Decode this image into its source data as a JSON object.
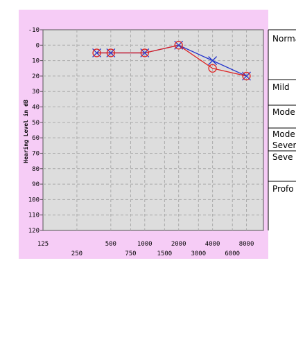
{
  "chart_data": {
    "type": "line",
    "ylabel": "Hearing Level in dB",
    "xlabel": "",
    "title": "",
    "y_inverted": true,
    "ylim": [
      -10,
      120
    ],
    "y_ticks": [
      "-10",
      "0",
      "10",
      "20",
      "30",
      "40",
      "50",
      "60",
      "70",
      "80",
      "90",
      "100",
      "110",
      "120"
    ],
    "x_ticks_row1": [
      "125",
      "500",
      "1000",
      "2000",
      "4000",
      "8000"
    ],
    "x_ticks_row2": [
      "250",
      "750",
      "1500",
      "3000",
      "6000"
    ],
    "x_scale": "log",
    "grid": true,
    "series": [
      {
        "marker": "cross",
        "color": "#2233cc",
        "points": [
          [
            375,
            5
          ],
          [
            500,
            5
          ],
          [
            1000,
            5
          ],
          [
            2000,
            0
          ],
          [
            4000,
            10
          ],
          [
            8000,
            20
          ]
        ]
      },
      {
        "marker": "circle",
        "color": "#dd2222",
        "points": [
          [
            375,
            5
          ],
          [
            500,
            5
          ],
          [
            1000,
            5
          ],
          [
            2000,
            0
          ],
          [
            4000,
            15
          ],
          [
            8000,
            20
          ]
        ]
      }
    ],
    "severity_labels": [
      "Norma",
      "Mild",
      "Mode",
      "Mode",
      "Sever",
      "Seve",
      "Profo"
    ]
  },
  "colors": {
    "frame_bg": "#f6ccf6",
    "plot_bg": "#dddddd",
    "grid": "#aaaaaa",
    "axes": "#555555"
  }
}
